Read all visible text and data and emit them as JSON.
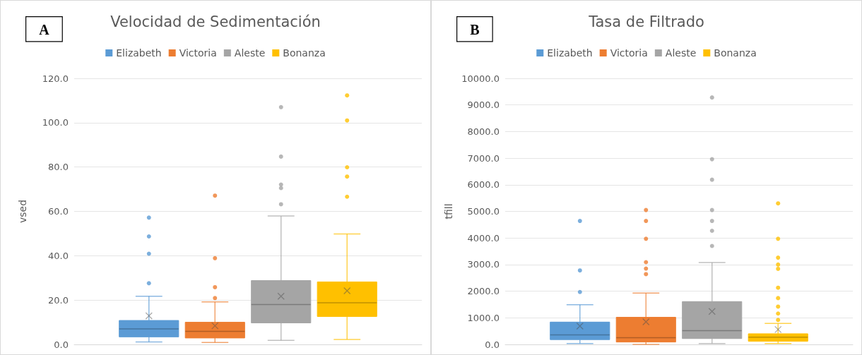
{
  "chart_data": [
    {
      "type": "box",
      "title": "Velocidad de Sedimentación",
      "ylabel": "vsed",
      "annotations": [
        "A"
      ],
      "categories": [
        null
      ],
      "legend": "top",
      "grid": "y",
      "ylim": [
        0,
        120
      ],
      "yticks": [
        {
          "value": 0,
          "label": "0.0"
        },
        {
          "value": 20,
          "label": "20.0"
        },
        {
          "value": 40,
          "label": "40.0"
        },
        {
          "value": 60,
          "label": "60.0"
        },
        {
          "value": 80,
          "label": "80.0"
        },
        {
          "value": 100,
          "label": "100.0"
        },
        {
          "value": 120,
          "label": "120.0"
        }
      ],
      "series": [
        {
          "name": "Elizabeth",
          "color": "#5b9bd5",
          "boxes": [
            {
              "low": 1.1,
              "q1": 3.4,
              "median": 7.0,
              "q3": 10.8,
              "high": 21.7,
              "mean": 12.9,
              "outliers": [
                27.6,
                40.9,
                48.7,
                57.2
              ]
            }
          ]
        },
        {
          "name": "Victoria",
          "color": "#ed7d31",
          "boxes": [
            {
              "low": 0.9,
              "q1": 2.9,
              "median": 5.9,
              "q3": 10.0,
              "high": 19.2,
              "mean": 8.4,
              "outliers": [
                20.9,
                25.8,
                38.9,
                67.1
              ]
            }
          ]
        },
        {
          "name": "Aleste",
          "color": "#a5a5a5",
          "boxes": [
            {
              "low": 1.8,
              "q1": 9.7,
              "median": 18.0,
              "q3": 28.8,
              "high": 57.9,
              "mean": 21.7,
              "outliers": [
                63.2,
                70.5,
                72.1,
                84.7,
                107.0
              ]
            }
          ]
        },
        {
          "name": "Bonanza",
          "color": "#ffc000",
          "boxes": [
            {
              "low": 2.2,
              "q1": 12.6,
              "median": 18.8,
              "q3": 28.2,
              "high": 49.8,
              "mean": 24.2,
              "outliers": [
                66.6,
                75.7,
                79.9,
                101.0,
                112.3
              ]
            }
          ]
        }
      ]
    },
    {
      "type": "box",
      "title": "Tasa de Filtrado",
      "ylabel": "tfill",
      "annotations": [
        "B"
      ],
      "categories": [
        null
      ],
      "legend": "top",
      "grid": "y",
      "ylim": [
        0,
        10000
      ],
      "yticks": [
        {
          "value": 0,
          "label": "0.0"
        },
        {
          "value": 1000,
          "label": "1000.0"
        },
        {
          "value": 2000,
          "label": "2000.0"
        },
        {
          "value": 3000,
          "label": "3000.0"
        },
        {
          "value": 4000,
          "label": "4000.0"
        },
        {
          "value": 5000,
          "label": "5000.0"
        },
        {
          "value": 6000,
          "label": "6000.0"
        },
        {
          "value": 7000,
          "label": "7000.0"
        },
        {
          "value": 8000,
          "label": "8000.0"
        },
        {
          "value": 9000,
          "label": "9000.0"
        },
        {
          "value": 10000,
          "label": "10000.0"
        }
      ],
      "series": [
        {
          "name": "Elizabeth",
          "color": "#5b9bd5",
          "boxes": [
            {
              "low": 30,
              "q1": 180,
              "median": 360,
              "q3": 840,
              "high": 1490,
              "mean": 690,
              "outliers": [
                1970,
                2780,
                4640
              ]
            }
          ]
        },
        {
          "name": "Victoria",
          "color": "#ed7d31",
          "boxes": [
            {
              "low": 0,
              "q1": 90,
              "median": 250,
              "q3": 1020,
              "high": 1930,
              "mean": 850,
              "outliers": [
                2640,
                2850,
                3090,
                3970,
                4640,
                5050
              ]
            }
          ]
        },
        {
          "name": "Aleste",
          "color": "#a5a5a5",
          "boxes": [
            {
              "low": 30,
              "q1": 220,
              "median": 520,
              "q3": 1610,
              "high": 3080,
              "mean": 1240,
              "outliers": [
                3700,
                4270,
                4640,
                5050,
                6190,
                6960,
                9280
              ]
            }
          ]
        },
        {
          "name": "Bonanza",
          "color": "#ffc000",
          "boxes": [
            {
              "low": 30,
              "q1": 120,
              "median": 270,
              "q3": 400,
              "high": 790,
              "mean": 560,
              "outliers": [
                920,
                1160,
                1420,
                1740,
                2130,
                2840,
                3000,
                3260,
                3970,
                5300
              ]
            }
          ]
        }
      ]
    }
  ]
}
